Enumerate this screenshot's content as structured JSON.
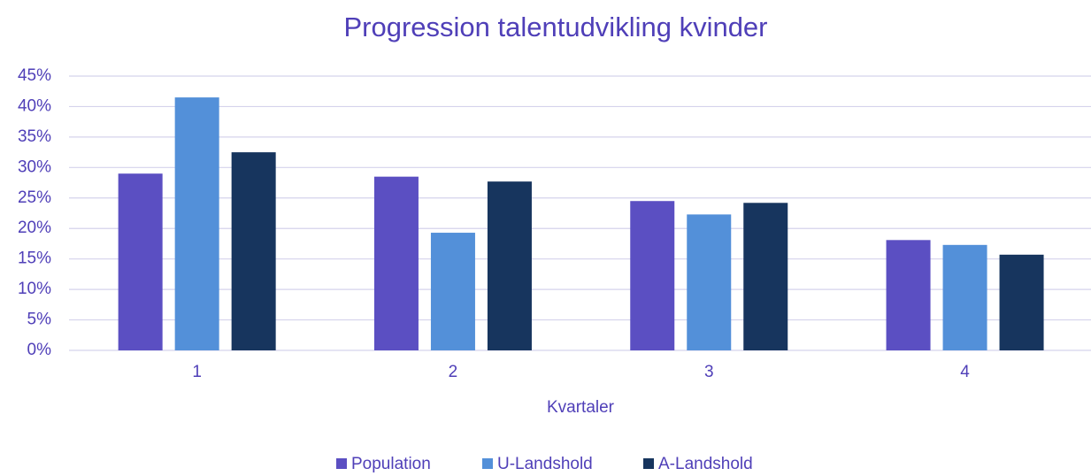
{
  "chart_data": {
    "type": "bar",
    "title": "Progression talentudvikling kvinder",
    "x_label": "Kvartaler",
    "categories": [
      "1",
      "2",
      "3",
      "4"
    ],
    "series": [
      {
        "name": "Population",
        "color": "#5b4fc2",
        "values": [
          29,
          28.5,
          24.5,
          18.1
        ]
      },
      {
        "name": "U-Landshold",
        "color": "#5390d9",
        "values": [
          41.5,
          19.3,
          22.3,
          17.3
        ]
      },
      {
        "name": "A-Landshold",
        "color": "#17355e",
        "values": [
          32.5,
          27.7,
          24.2,
          15.7
        ]
      }
    ],
    "ylim": [
      0,
      45
    ],
    "yticks": [
      {
        "value": 0,
        "label": "0%"
      },
      {
        "value": 5,
        "label": "5%"
      },
      {
        "value": 10,
        "label": "10%"
      },
      {
        "value": 15,
        "label": "15%"
      },
      {
        "value": 20,
        "label": "20%"
      },
      {
        "value": 25,
        "label": "25%"
      },
      {
        "value": 30,
        "label": "30%"
      },
      {
        "value": 35,
        "label": "35%"
      },
      {
        "value": 40,
        "label": "40%"
      },
      {
        "value": 45,
        "label": "45%"
      }
    ],
    "grid": true,
    "legend": "bottom"
  }
}
